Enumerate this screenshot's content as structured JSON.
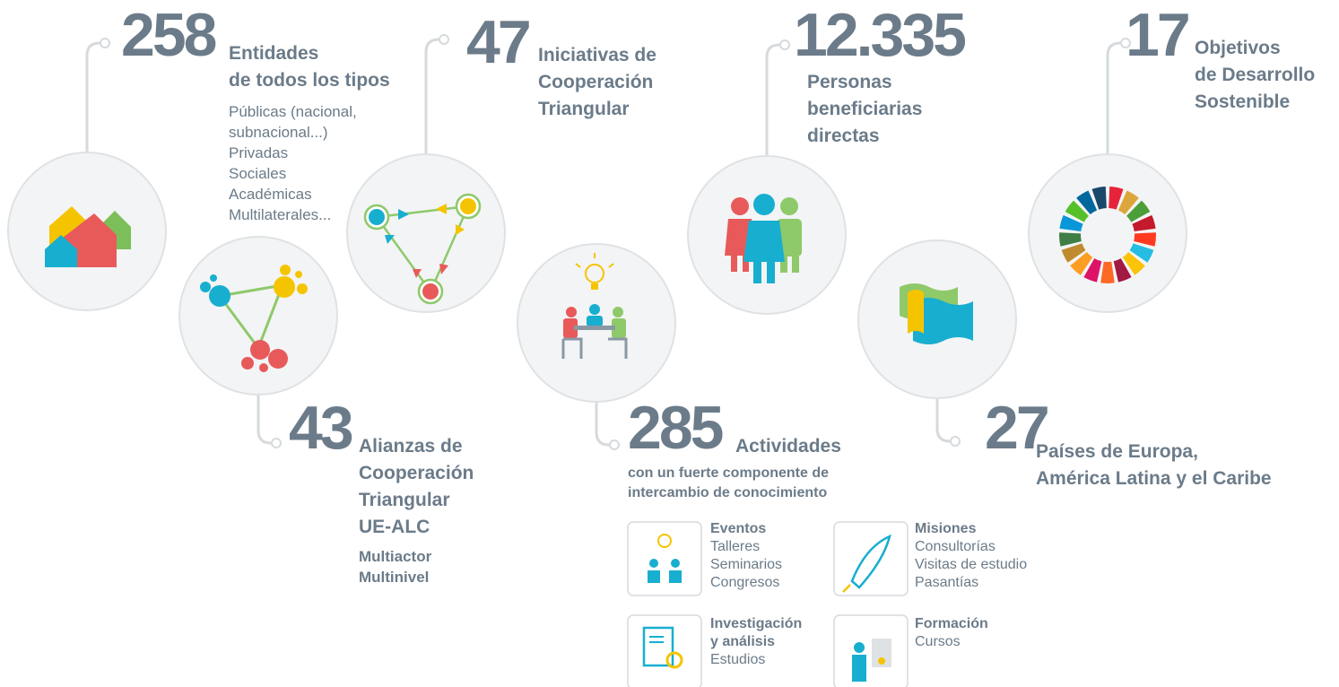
{
  "stats": [
    {
      "number": "258",
      "title": [
        "Entidades",
        "de todos los tipos"
      ],
      "details": [
        "Públicas (nacional,",
        "subnacional...)",
        "Privadas",
        "Sociales",
        "Académicas",
        "Multilaterales..."
      ]
    },
    {
      "number": "43",
      "title": [
        "Alianzas de",
        "Cooperación",
        "Triangular",
        "UE-ALC"
      ],
      "details": [
        "Multiactor",
        "Multinivel"
      ]
    },
    {
      "number": "47",
      "title": [
        "Iniciativas de",
        "Cooperación",
        "Triangular"
      ]
    },
    {
      "number": "285",
      "title": [
        "Actividades"
      ],
      "details": [
        "con un fuerte componente de",
        "intercambio de conocimiento"
      ]
    },
    {
      "number": "12.335",
      "title": [
        "Personas",
        "beneficiarias",
        "directas"
      ]
    },
    {
      "number": "27",
      "title": [
        "Países de Europa,",
        "América Latina y el Caribe"
      ]
    },
    {
      "number": "17",
      "title": [
        "Objetivos",
        "de Desarrollo",
        "Sostenible"
      ]
    }
  ],
  "activities": [
    {
      "title": [
        "Eventos"
      ],
      "items": [
        "Talleres",
        "Seminarios",
        "Congresos"
      ]
    },
    {
      "title": [
        "Misiones"
      ],
      "items": [
        "Consultorías",
        "Visitas de estudio",
        "Pasantías"
      ]
    },
    {
      "title": [
        "Investigación",
        "y análisis"
      ],
      "items": [
        "Estudios"
      ]
    },
    {
      "title": [
        "Formación"
      ],
      "items": [
        "Cursos"
      ]
    }
  ]
}
